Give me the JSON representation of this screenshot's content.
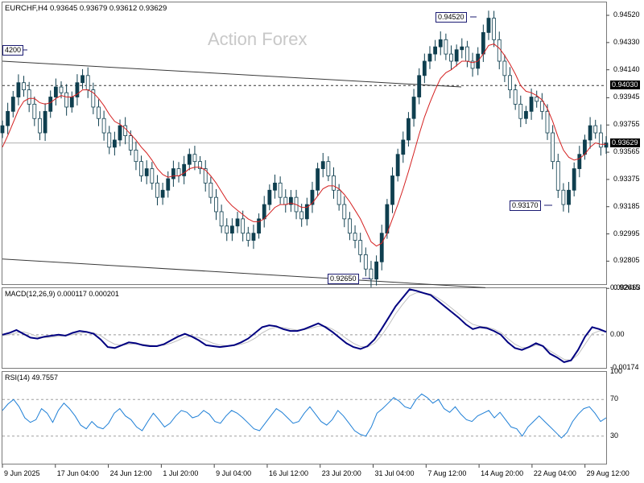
{
  "chart_data": [
    {
      "type": "candlestick",
      "title": "EURCHF,H4  0.93645 0.93679 0.93612 0.93629",
      "watermark": "Action Forex",
      "ylim": [
        0.9265,
        0.9461
      ],
      "yticks": [
        "0.94520",
        "0.94330",
        "0.94140",
        "0.93945",
        "0.93755",
        "0.93565",
        "0.93375",
        "0.93185",
        "0.92995",
        "0.92805",
        "0.92615"
      ],
      "xticks": [
        "9 Jun 2025",
        "17 Jun 04:00",
        "24 Jun 12:00",
        "1 Jul 20:00",
        "9 Jul 04:00",
        "16 Jul 12:00",
        "23 Jul 20:00",
        "31 Jul 04:00",
        "7 Aug 12:00",
        "14 Aug 20:00",
        "22 Aug 04:00",
        "29 Aug 12:00"
      ],
      "current_price": "0.93629",
      "level_label": "0.94030",
      "annotations": [
        {
          "label": "0.94520",
          "value": 0.9452
        },
        {
          "label": "0.93170",
          "value": 0.9317
        },
        {
          "label": "0.92650",
          "value": 0.9265
        },
        {
          "label": "4200",
          "value": 0.942
        }
      ],
      "close_series": [
        0.9375,
        0.9385,
        0.9395,
        0.9405,
        0.94,
        0.939,
        0.938,
        0.937,
        0.9385,
        0.9395,
        0.9402,
        0.9398,
        0.9388,
        0.9395,
        0.9405,
        0.941,
        0.94,
        0.9388,
        0.938,
        0.937,
        0.936,
        0.9365,
        0.9375,
        0.9368,
        0.9358,
        0.935,
        0.934,
        0.9345,
        0.9335,
        0.9325,
        0.933,
        0.9338,
        0.9345,
        0.934,
        0.9348,
        0.9355,
        0.935,
        0.9345,
        0.9335,
        0.9325,
        0.9315,
        0.9305,
        0.93,
        0.9305,
        0.931,
        0.93,
        0.9295,
        0.93,
        0.931,
        0.932,
        0.933,
        0.9335,
        0.9325,
        0.932,
        0.9325,
        0.9315,
        0.931,
        0.932,
        0.933,
        0.9345,
        0.935,
        0.934,
        0.933,
        0.932,
        0.931,
        0.93,
        0.9295,
        0.9285,
        0.9275,
        0.9268,
        0.928,
        0.93,
        0.932,
        0.934,
        0.9355,
        0.9365,
        0.938,
        0.9395,
        0.941,
        0.942,
        0.9425,
        0.943,
        0.9435,
        0.9425,
        0.942,
        0.9428,
        0.943,
        0.942,
        0.9415,
        0.9425,
        0.944,
        0.945,
        0.9435,
        0.942,
        0.941,
        0.94,
        0.939,
        0.938,
        0.9385,
        0.9395,
        0.9392,
        0.9385,
        0.937,
        0.935,
        0.933,
        0.932,
        0.933,
        0.9345,
        0.9355,
        0.9365,
        0.9375,
        0.937,
        0.936,
        0.9363
      ],
      "ma_series": [
        0.936,
        0.9368,
        0.9377,
        0.9386,
        0.9392,
        0.9394,
        0.9394,
        0.9391,
        0.939,
        0.9391,
        0.9394,
        0.9396,
        0.9395,
        0.9395,
        0.9397,
        0.94,
        0.94,
        0.9398,
        0.9394,
        0.9389,
        0.9383,
        0.9378,
        0.9376,
        0.9373,
        0.9369,
        0.9365,
        0.936,
        0.9356,
        0.9351,
        0.9345,
        0.9341,
        0.9339,
        0.934,
        0.934,
        0.9342,
        0.9345,
        0.9346,
        0.9346,
        0.9344,
        0.934,
        0.9335,
        0.9329,
        0.9323,
        0.9319,
        0.9316,
        0.9313,
        0.931,
        0.9308,
        0.9308,
        0.931,
        0.9314,
        0.9318,
        0.932,
        0.932,
        0.9321,
        0.932,
        0.9318,
        0.9318,
        0.9321,
        0.9326,
        0.9331,
        0.9333,
        0.9333,
        0.9331,
        0.9327,
        0.9322,
        0.9316,
        0.931,
        0.9302,
        0.9294,
        0.9291,
        0.9293,
        0.93,
        0.931,
        0.932,
        0.9331,
        0.9343,
        0.9356,
        0.9369,
        0.9381,
        0.9391,
        0.94,
        0.9408,
        0.9412,
        0.9414,
        0.9417,
        0.942,
        0.942,
        0.9419,
        0.942,
        0.9425,
        0.9431,
        0.9432,
        0.9429,
        0.9424,
        0.9418,
        0.9411,
        0.9403,
        0.9399,
        0.9398,
        0.9396,
        0.9393,
        0.9387,
        0.9378,
        0.9367,
        0.9358,
        0.9353,
        0.9351,
        0.9352,
        0.9355,
        0.936,
        0.9363,
        0.9362,
        0.9362
      ],
      "channel_top": [
        [
          0,
          0.942
        ],
        [
          0.76,
          0.9402
        ]
      ],
      "channel_bottom": [
        [
          0,
          0.9282
        ],
        [
          0.8,
          0.9262
        ]
      ]
    },
    {
      "type": "line",
      "title": "MACD(12,26,9) 0.000117 0.000201",
      "ylim": [
        -0.00175,
        0.00246
      ],
      "yticks": [
        "0.002463",
        "0.00",
        "-0.00174"
      ],
      "zero_label": "0.00",
      "series": [
        {
          "color": "#000080",
          "values": [
            0.0,
            0.0001,
            0.00025,
            5e-05,
            -0.00015,
            -0.0002,
            -0.0001,
            -5e-05,
            0.0,
            -5e-05,
            0.0001,
            0.0002,
            0.00015,
            5e-05,
            -0.00025,
            -0.00065,
            -0.0007,
            -0.00055,
            -0.0004,
            -0.00045,
            -0.00055,
            -0.0006,
            -0.0006,
            -0.0005,
            -0.0003,
            -0.0001,
            5e-05,
            -0.0001,
            -0.0003,
            -0.00055,
            -0.0006,
            -0.00065,
            -0.0006,
            -0.00055,
            -0.0004,
            -0.0002,
            0.0001,
            0.0004,
            0.0005,
            0.00045,
            0.0003,
            0.0002,
            0.0002,
            0.0003,
            0.00045,
            0.0006,
            0.0004,
            0.00015,
            -0.00015,
            -0.00045,
            -0.00065,
            -0.00075,
            -0.0006,
            -0.00025,
            0.0003,
            0.0009,
            0.0015,
            0.00195,
            0.0024,
            0.00232,
            0.0022,
            0.0021,
            0.0018,
            0.0015,
            0.0012,
            0.0009,
            0.00055,
            0.0003,
            0.0004,
            0.00035,
            0.0002,
            0.0,
            -0.0004,
            -0.0007,
            -0.0008,
            -0.00065,
            -0.00045,
            -0.0006,
            -0.001,
            -0.0012,
            -0.00145,
            -0.00135,
            -0.0008,
            -0.0001,
            0.0004,
            0.0003,
            0.00015
          ]
        },
        {
          "color": "#c0c0c0",
          "values": [
            -5e-05,
            0.0,
            0.0001,
            0.00015,
            5e-05,
            -0.0001,
            -0.00015,
            -0.00012,
            -8e-05,
            -5e-05,
            0.0,
            8e-05,
            0.00013,
            0.0001,
            -5e-05,
            -0.0003,
            -0.0005,
            -0.00055,
            -0.0005,
            -0.00048,
            -0.0005,
            -0.00055,
            -0.00058,
            -0.00055,
            -0.00045,
            -0.0003,
            -0.00012,
            -8e-05,
            -0.00015,
            -0.0003,
            -0.00045,
            -0.00055,
            -0.00058,
            -0.00057,
            -0.0005,
            -0.00038,
            -0.00018,
            0.0001,
            0.0003,
            0.0004,
            0.00038,
            0.0003,
            0.00025,
            0.00027,
            0.00035,
            0.00045,
            0.00045,
            0.0003,
            8e-05,
            -0.0002,
            -0.00045,
            -0.00062,
            -0.00065,
            -0.00045,
            -5e-05,
            0.0005,
            0.0011,
            0.0016,
            0.00205,
            0.00222,
            0.00222,
            0.00215,
            0.00195,
            0.0017,
            0.0014,
            0.0011,
            0.0008,
            0.00055,
            0.00045,
            0.0004,
            0.0003,
            0.00012,
            -0.0002,
            -0.0005,
            -0.00068,
            -0.00068,
            -0.00055,
            -0.00058,
            -0.00085,
            -0.00108,
            -0.0013,
            -0.00135,
            -0.00105,
            -0.0005,
            5e-05,
            0.0002,
            0.0002
          ]
        }
      ]
    },
    {
      "type": "line",
      "title": "RSI(14) 49.7557",
      "ylim": [
        0,
        100
      ],
      "yticks": [
        "100",
        "70",
        "30",
        "0"
      ],
      "series": [
        {
          "color": "#1e7fd6",
          "values": [
            58,
            65,
            70,
            62,
            50,
            45,
            48,
            60,
            55,
            45,
            58,
            66,
            60,
            52,
            42,
            38,
            46,
            40,
            38,
            44,
            55,
            60,
            52,
            48,
            40,
            36,
            46,
            55,
            48,
            40,
            44,
            52,
            58,
            56,
            50,
            52,
            58,
            54,
            46,
            44,
            52,
            58,
            55,
            50,
            44,
            38,
            36,
            44,
            52,
            60,
            56,
            50,
            44,
            46,
            55,
            62,
            54,
            46,
            42,
            48,
            58,
            52,
            44,
            36,
            32,
            30,
            40,
            55,
            60,
            66,
            72,
            68,
            62,
            60,
            70,
            76,
            72,
            66,
            70,
            60,
            56,
            62,
            54,
            48,
            46,
            52,
            55,
            58,
            50,
            56,
            48,
            40,
            38,
            30,
            40,
            46,
            52,
            46,
            40,
            34,
            28,
            34,
            46,
            54,
            60,
            62,
            55,
            46,
            50
          ]
        }
      ]
    }
  ]
}
